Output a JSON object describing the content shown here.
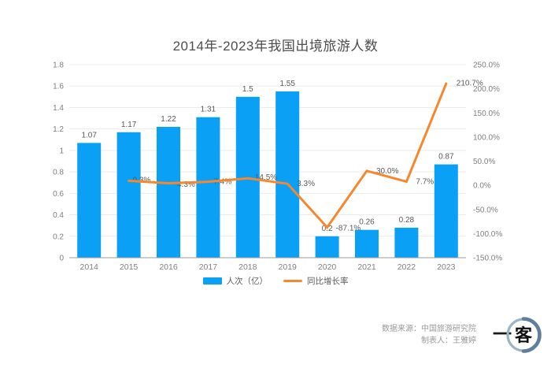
{
  "title": "2014年-2023年我国出境旅游人数",
  "chart_data": {
    "type": "bar+line combo",
    "title": "2014年-2023年我国出境旅游人数",
    "categories": [
      "2014",
      "2015",
      "2016",
      "2017",
      "2018",
      "2019",
      "2020",
      "2021",
      "2022",
      "2023"
    ],
    "series": [
      {
        "name": "人次（亿）",
        "type": "bar",
        "axis": "left",
        "color": "#0aa0f6",
        "values": [
          1.07,
          1.17,
          1.22,
          1.31,
          1.5,
          1.55,
          0.2,
          0.26,
          0.28,
          0.87
        ],
        "labels": [
          "1.07",
          "1.17",
          "1.22",
          "1.31",
          "1.5",
          "1.55",
          "0.2",
          "0.26",
          "0.28",
          "0.87"
        ]
      },
      {
        "name": "同比增长率",
        "type": "line",
        "axis": "right",
        "color": "#f6872c",
        "values": [
          null,
          9.3,
          4.3,
          7.4,
          14.5,
          3.3,
          -87.1,
          30.0,
          7.7,
          210.7
        ],
        "labels": [
          null,
          "9.3%",
          "4.3%",
          "7.4%",
          "14.5%",
          "3.3%",
          "-87.1%",
          "30.0%",
          "7.7%",
          "210.7%"
        ]
      }
    ],
    "left_axis": {
      "min": 0,
      "max": 1.8,
      "ticks": [
        "1.8",
        "1.6",
        "1.4",
        "1.2",
        "1",
        "0.8",
        "0.6",
        "0.4",
        "0.2",
        "0"
      ]
    },
    "right_axis": {
      "min": -150,
      "max": 250,
      "ticks": [
        "250.0%",
        "200.0%",
        "150.0%",
        "100.0%",
        "50.0%",
        "0.0%",
        "-50.0%",
        "-100.0%",
        "-150.0%"
      ]
    },
    "grid": true,
    "legend_position": "bottom"
  },
  "legend": {
    "bar_label": "人次（亿）",
    "line_label": "同比增长率"
  },
  "footer": {
    "source": "数据来源：中国旅游研究院",
    "author": "制表人：王雅婷",
    "logo_left": "一",
    "logo_circle": "客"
  },
  "colors": {
    "bar": "#0aa0f6",
    "line": "#f6872c",
    "grid": "#ebebeb",
    "axis_line": "#9b9b9b",
    "tick_text": "#7f7f7f",
    "data_label_text": "#595959",
    "title_text": "#4d4d4d",
    "footer_text": "#999999",
    "logo_ring": "#8ba3b8"
  }
}
